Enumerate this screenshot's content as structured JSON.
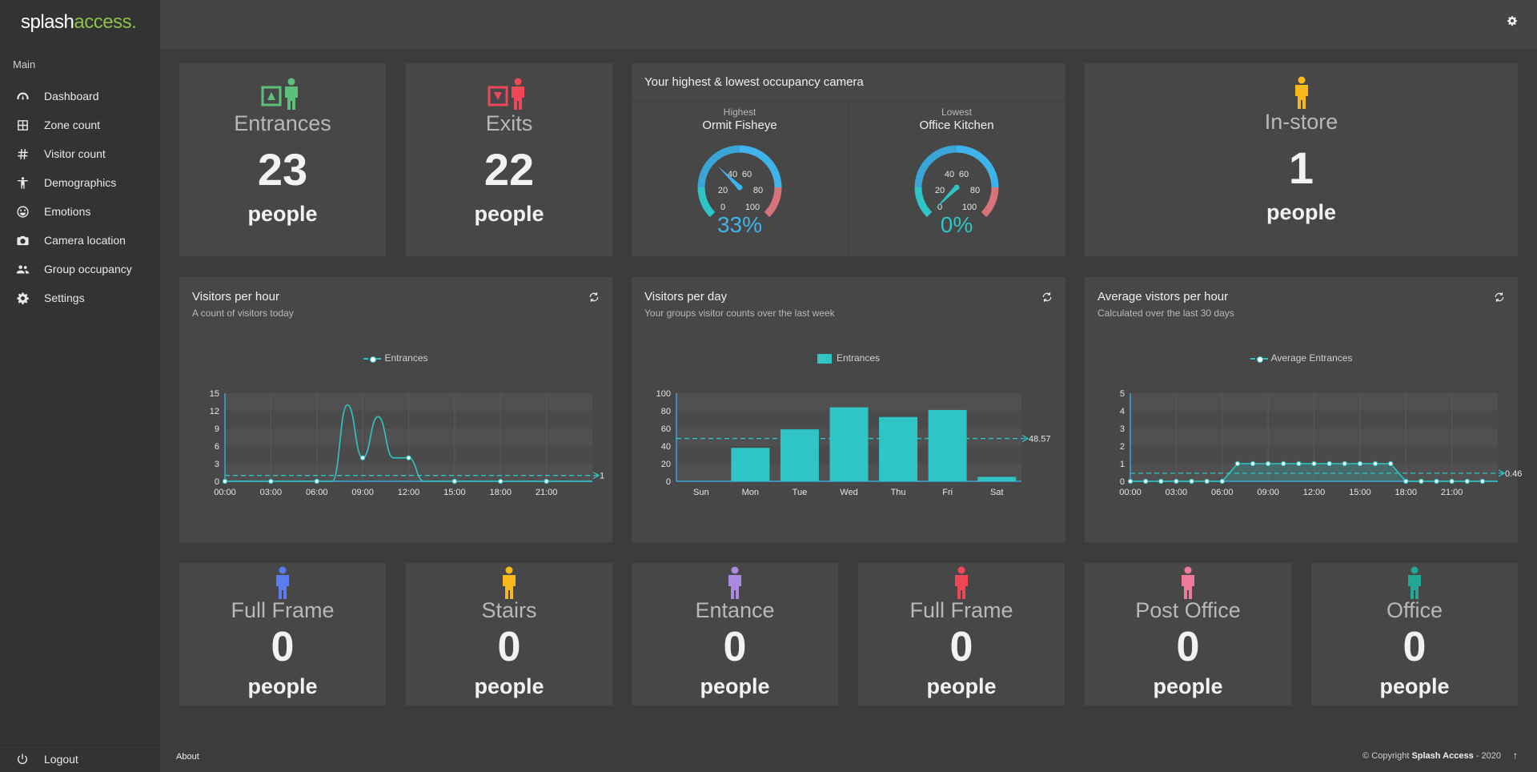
{
  "brand": {
    "name_main": "splash",
    "name_accent": "access."
  },
  "sidebar": {
    "section": "Main",
    "items": [
      {
        "label": "Dashboard",
        "icon": "speedometer-icon"
      },
      {
        "label": "Zone count",
        "icon": "grid-icon"
      },
      {
        "label": "Visitor count",
        "icon": "hash-icon"
      },
      {
        "label": "Demographics",
        "icon": "person-icon"
      },
      {
        "label": "Emotions",
        "icon": "smile-icon"
      },
      {
        "label": "Camera location",
        "icon": "camera-icon"
      },
      {
        "label": "Group occupancy",
        "icon": "group-icon"
      },
      {
        "label": "Settings",
        "icon": "gear-icon"
      }
    ],
    "logout": "Logout"
  },
  "stats": {
    "entrances": {
      "title": "Entrances",
      "value": "23",
      "unit": "people"
    },
    "exits": {
      "title": "Exits",
      "value": "22",
      "unit": "people"
    },
    "instore": {
      "title": "In-store",
      "value": "1",
      "unit": "people"
    }
  },
  "occupancy": {
    "title": "Your highest & lowest occupancy camera",
    "highest": {
      "caption": "Highest",
      "name": "Ormit Fisheye",
      "value": "33%",
      "gauge_fraction": 0.33
    },
    "lowest": {
      "caption": "Lowest",
      "name": "Office Kitchen",
      "value": "0%",
      "gauge_fraction": 0.0
    },
    "gauge_ticks": [
      "0",
      "20",
      "40",
      "60",
      "80",
      "100"
    ]
  },
  "charts": {
    "per_hour": {
      "title": "Visitors per hour",
      "subtitle": "A count of visitors today",
      "legend": "Entrances"
    },
    "per_day": {
      "title": "Visitors per day",
      "subtitle": "Your groups visitor counts over the last week",
      "legend": "Entrances"
    },
    "avg_hour": {
      "title": "Average vistors per hour",
      "subtitle": "Calculated over the last 30 days",
      "legend": "Average Entrances"
    }
  },
  "chart_data": [
    {
      "type": "line",
      "title": "Visitors per hour",
      "x": [
        0,
        1,
        2,
        3,
        4,
        5,
        6,
        7,
        8,
        9,
        10,
        11,
        12,
        13,
        14,
        15,
        16,
        17,
        18,
        19,
        20,
        21,
        22,
        23
      ],
      "x_tick_labels": [
        "00:00",
        "03:00",
        "06:00",
        "09:00",
        "12:00",
        "15:00",
        "18:00",
        "21:00"
      ],
      "series": [
        {
          "name": "Entrances",
          "values": [
            0,
            0,
            0,
            0,
            0,
            0,
            0,
            0,
            13,
            4,
            11,
            4,
            4,
            0,
            0,
            0,
            0,
            0,
            0,
            0,
            0,
            0,
            0,
            0
          ]
        }
      ],
      "average_line": 1,
      "average_label": "1",
      "ylim": [
        0,
        15
      ],
      "y_ticks": [
        0,
        3,
        6,
        9,
        12,
        15
      ]
    },
    {
      "type": "bar",
      "title": "Visitors per day",
      "categories": [
        "Sun",
        "Mon",
        "Tue",
        "Wed",
        "Thu",
        "Fri",
        "Sat"
      ],
      "series": [
        {
          "name": "Entrances",
          "values": [
            0,
            38,
            59,
            84,
            73,
            81,
            5
          ]
        }
      ],
      "average_line": 48.57,
      "average_label": "48.57",
      "ylim": [
        0,
        100
      ],
      "y_ticks": [
        0,
        20,
        40,
        60,
        80,
        100
      ]
    },
    {
      "type": "area",
      "title": "Average vistors per hour",
      "x": [
        0,
        1,
        2,
        3,
        4,
        5,
        6,
        7,
        8,
        9,
        10,
        11,
        12,
        13,
        14,
        15,
        16,
        17,
        18,
        19,
        20,
        21,
        22,
        23
      ],
      "x_tick_labels": [
        "00:00",
        "03:00",
        "06:00",
        "09:00",
        "12:00",
        "15:00",
        "18:00",
        "21:00"
      ],
      "series": [
        {
          "name": "Average Entrances",
          "values": [
            0,
            0,
            0,
            0,
            0,
            0,
            0,
            1,
            1,
            1,
            1,
            1,
            1,
            1,
            1,
            1,
            1,
            1,
            0,
            0,
            0,
            0,
            0,
            0
          ]
        }
      ],
      "average_line": 0.46,
      "average_label": "0.46",
      "ylim": [
        0,
        5
      ],
      "y_ticks": [
        0,
        1,
        2,
        3,
        4,
        5
      ]
    }
  ],
  "zones": [
    {
      "title": "Full Frame",
      "value": "0",
      "unit": "people",
      "color": "#5b7cf0"
    },
    {
      "title": "Stairs",
      "value": "0",
      "unit": "people",
      "color": "#f6b81a"
    },
    {
      "title": "Entance",
      "value": "0",
      "unit": "people",
      "color": "#a98ae0"
    },
    {
      "title": "Full Frame",
      "value": "0",
      "unit": "people",
      "color": "#ef4757"
    },
    {
      "title": "Post Office",
      "value": "0",
      "unit": "people",
      "color": "#f07a9a"
    },
    {
      "title": "Office",
      "value": "0",
      "unit": "people",
      "color": "#23a896"
    }
  ],
  "colors": {
    "accent_teal": "#2fc4c6",
    "gauge_blue": "#3fb4ea",
    "entrance_green": "#5cc07a",
    "exit_red": "#ef4757",
    "instore_yellow": "#f6b81a"
  },
  "footer": {
    "about": "About",
    "copy_prefix": "© Copyright ",
    "copy_brand": "Splash Access",
    "copy_suffix": " - 2020"
  }
}
